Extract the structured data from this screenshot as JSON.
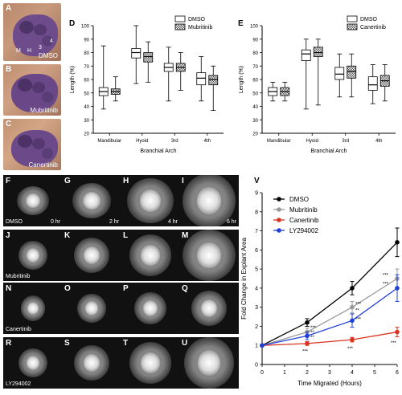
{
  "panels": {
    "A": "A",
    "B": "B",
    "C": "C",
    "D": "D",
    "E": "E",
    "V": "V",
    "embryo_labels": [
      "DMSO",
      "Mubritinib",
      "Canertinib"
    ],
    "embryo_marks": {
      "M": "M",
      "H": "H",
      "n3": "3",
      "n4": "4"
    }
  },
  "micro": {
    "letters": [
      "F",
      "G",
      "H",
      "I",
      "J",
      "K",
      "L",
      "M",
      "N",
      "O",
      "P",
      "Q",
      "R",
      "S",
      "T",
      "U"
    ],
    "times": [
      "0 hr",
      "2 hr",
      "4 hr",
      "6 hr"
    ],
    "rows": [
      "DMSO",
      "Mubritinib",
      "Canertinib",
      "LY294002"
    ]
  },
  "chart_data": [
    {
      "type": "box",
      "panel": "D",
      "ylabel": "Length (%)",
      "xlabel": "Branchial Arch",
      "categories": [
        "Mandibular",
        "Hyoid",
        "3rd",
        "4th"
      ],
      "ylim": [
        20,
        100
      ],
      "yticks": [
        20,
        30,
        40,
        50,
        60,
        70,
        80,
        90,
        100
      ],
      "legend": [
        "DMSO",
        "Mubritinib"
      ],
      "legend_position": "top-right",
      "series": [
        {
          "name": "DMSO",
          "boxes": [
            {
              "min": 38,
              "q1": 48,
              "median": 51,
              "q3": 54,
              "max": 85
            },
            {
              "min": 57,
              "q1": 76,
              "median": 80,
              "q3": 83,
              "max": 100
            },
            {
              "min": 44,
              "q1": 66,
              "median": 69,
              "q3": 72,
              "max": 84
            },
            {
              "min": 44,
              "q1": 56,
              "median": 61,
              "q3": 65,
              "max": 77
            }
          ]
        },
        {
          "name": "Mubritinib",
          "boxes": [
            {
              "min": 44,
              "q1": 49,
              "median": 51,
              "q3": 53,
              "max": 62
            },
            {
              "min": 58,
              "q1": 73,
              "median": 77,
              "q3": 80,
              "max": 88
            },
            {
              "min": 52,
              "q1": 66,
              "median": 69,
              "q3": 72,
              "max": 80
            },
            {
              "min": 37,
              "q1": 56,
              "median": 60,
              "q3": 63,
              "max": 70
            }
          ]
        }
      ]
    },
    {
      "type": "box",
      "panel": "E",
      "ylabel": "Length (%)",
      "xlabel": "Branchial Arch",
      "categories": [
        "Mandibular",
        "Hyoid",
        "3rd",
        "4th"
      ],
      "ylim": [
        20,
        100
      ],
      "yticks": [
        20,
        30,
        40,
        50,
        60,
        70,
        80,
        90,
        100
      ],
      "legend": [
        "DMSO",
        "Canertinib"
      ],
      "legend_position": "top-right",
      "series": [
        {
          "name": "DMSO",
          "boxes": [
            {
              "min": 44,
              "q1": 48,
              "median": 51,
              "q3": 54,
              "max": 58
            },
            {
              "min": 38,
              "q1": 74,
              "median": 79,
              "q3": 82,
              "max": 90
            },
            {
              "min": 47,
              "q1": 60,
              "median": 64,
              "q3": 69,
              "max": 79
            },
            {
              "min": 42,
              "q1": 52,
              "median": 56,
              "q3": 62,
              "max": 71
            }
          ]
        },
        {
          "name": "Canertinib",
          "boxes": [
            {
              "min": 44,
              "q1": 48,
              "median": 51,
              "q3": 54,
              "max": 58
            },
            {
              "min": 41,
              "q1": 77,
              "median": 80,
              "q3": 84,
              "max": 90
            },
            {
              "min": 47,
              "q1": 61,
              "median": 66,
              "q3": 70,
              "max": 79
            },
            {
              "min": 44,
              "q1": 55,
              "median": 59,
              "q3": 63,
              "max": 71
            }
          ]
        }
      ]
    },
    {
      "type": "line",
      "panel": "V",
      "ylabel": "Fold Change in Explant Area",
      "xlabel": "Time Migrated (Hours)",
      "x": [
        0,
        2,
        4,
        6
      ],
      "xlim": [
        0,
        6
      ],
      "ylim": [
        0,
        9
      ],
      "xticks": [
        0,
        1,
        2,
        3,
        4,
        5,
        6
      ],
      "yticks": [
        0,
        1,
        2,
        3,
        4,
        5,
        6,
        7,
        8,
        9
      ],
      "legend_position": "top-left",
      "series": [
        {
          "name": "DMSO",
          "color": "#000000",
          "values": [
            1,
            2.2,
            4.0,
            6.4
          ],
          "errors": [
            0,
            0.2,
            0.35,
            0.75
          ]
        },
        {
          "name": "Mubritinib",
          "color": "#999999",
          "values": [
            1,
            1.7,
            3.0,
            4.5
          ],
          "errors": [
            0,
            0.2,
            0.3,
            0.5
          ]
        },
        {
          "name": "Canertinib",
          "color": "#d9331f",
          "values": [
            1,
            1.1,
            1.3,
            1.7
          ],
          "errors": [
            0,
            0.1,
            0.12,
            0.25
          ]
        },
        {
          "name": "LY294002",
          "color": "#1f3fd9",
          "values": [
            1,
            1.5,
            2.3,
            4.0
          ],
          "errors": [
            0,
            0.2,
            0.35,
            0.7
          ]
        }
      ],
      "annotations": [
        "***",
        "**",
        "***",
        "**",
        "***",
        "***",
        "***",
        "**",
        "***",
        "***",
        "***"
      ]
    }
  ]
}
